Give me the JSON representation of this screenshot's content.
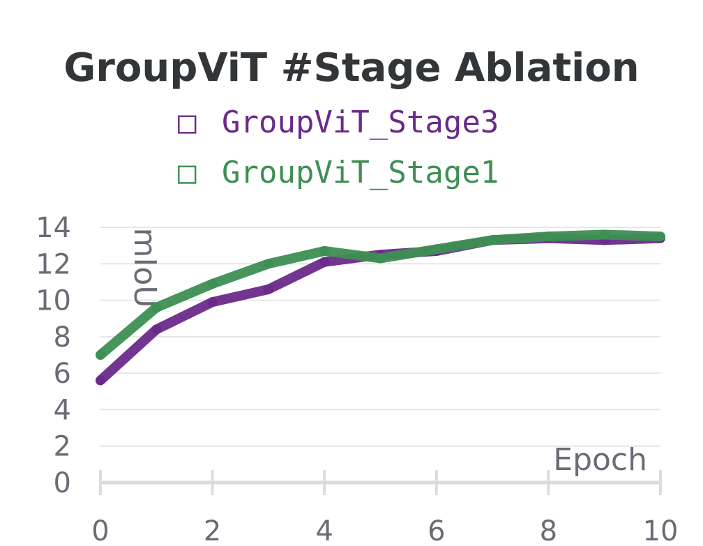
{
  "chart_data": {
    "type": "line",
    "title": "GroupViT #Stage Ablation",
    "xlabel": "Epoch",
    "ylabel": "mIoU",
    "xlim": [
      0,
      10
    ],
    "ylim": [
      0,
      14
    ],
    "x_ticks": [
      "0",
      "2",
      "4",
      "6",
      "8",
      "10"
    ],
    "y_ticks": [
      "0",
      "2",
      "4",
      "6",
      "8",
      "10",
      "12",
      "14"
    ],
    "grid": true,
    "legend_position": "top",
    "x": [
      0,
      1,
      2,
      3,
      4,
      5,
      6,
      7,
      8,
      9,
      10
    ],
    "series": [
      {
        "name": "GroupViT_Stage3",
        "color": "#6a2a8a",
        "values": [
          5.6,
          8.4,
          9.9,
          10.6,
          12.1,
          12.5,
          12.7,
          13.3,
          13.4,
          13.3,
          13.4
        ]
      },
      {
        "name": "GroupViT_Stage1",
        "color": "#3d8f53",
        "values": [
          7.0,
          9.6,
          10.9,
          12.0,
          12.7,
          12.3,
          12.8,
          13.3,
          13.5,
          13.6,
          13.5
        ]
      }
    ]
  },
  "legend": {
    "marker": "□"
  },
  "colors": {
    "grid": "#e6e6e6",
    "axis": "#dcdcdc",
    "text": "#6b6b76",
    "title": "#333638"
  }
}
